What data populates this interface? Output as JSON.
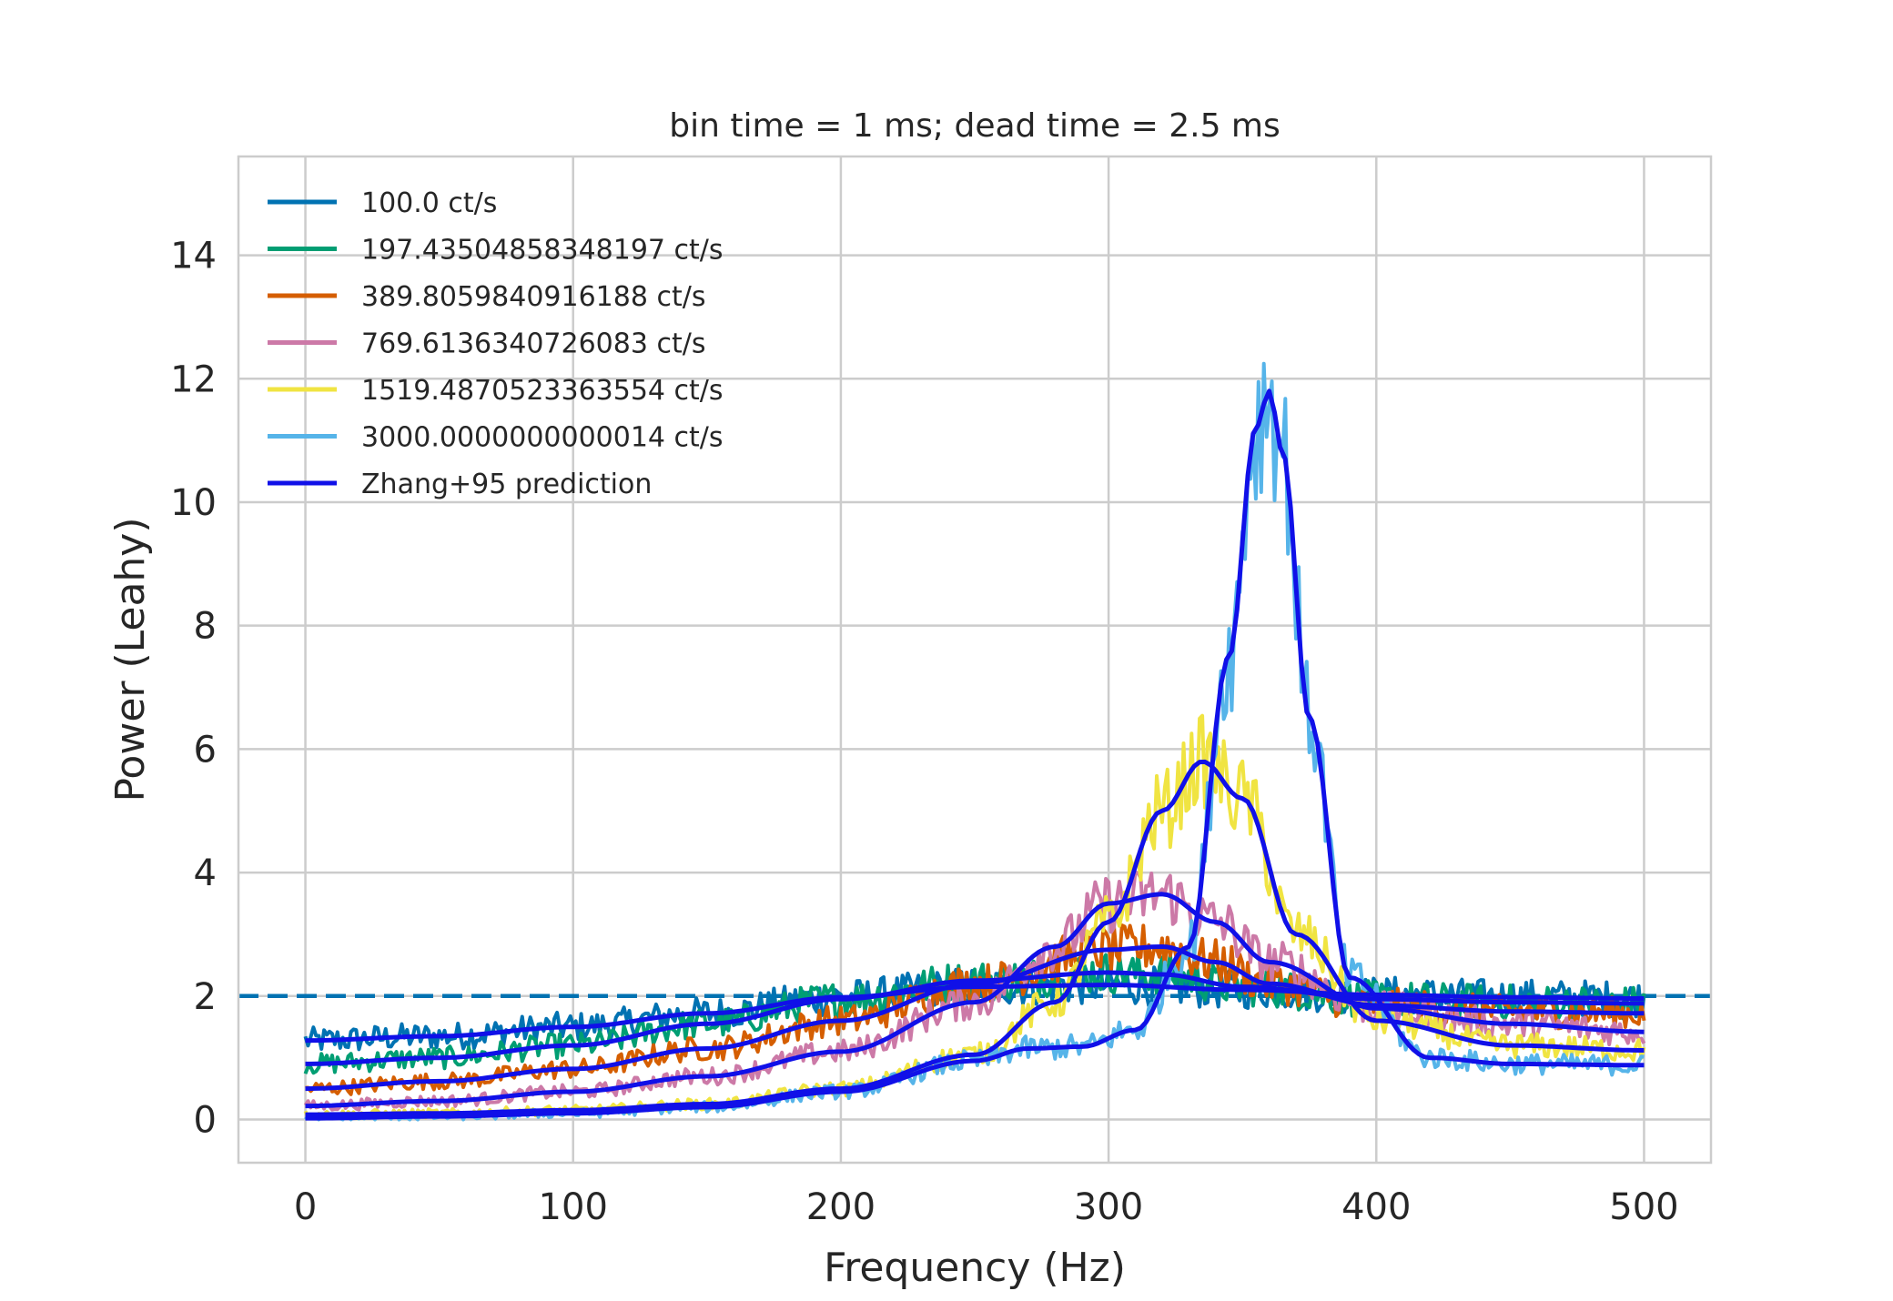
{
  "chart_data": {
    "type": "line",
    "title": "bin time = 1 ms; dead time = 2.5 ms",
    "xlabel": "Frequency (Hz)",
    "ylabel": "Power (Leahy)",
    "xlim": [
      -25,
      525
    ],
    "ylim": [
      -0.7,
      15.6
    ],
    "xticks": [
      0,
      100,
      200,
      300,
      400,
      500
    ],
    "yticks": [
      0,
      2,
      4,
      6,
      8,
      10,
      12,
      14
    ],
    "xtick_labels": [
      "0",
      "100",
      "200",
      "300",
      "400",
      "500"
    ],
    "ytick_labels": [
      "0",
      "2",
      "4",
      "6",
      "8",
      "10",
      "12",
      "14"
    ],
    "grid": true,
    "legend_position": "top-left",
    "reference_line": {
      "y": 2,
      "style": "dashed",
      "color": "#0072b2"
    },
    "series": [
      {
        "name": "100.0 ct/s",
        "color": "#0072b2",
        "x": [
          0,
          50,
          100,
          150,
          200,
          250,
          300,
          350,
          400,
          450,
          500
        ],
        "y": [
          1.28,
          1.35,
          1.5,
          1.72,
          1.98,
          2.15,
          2.18,
          2.1,
          2.02,
          1.98,
          1.96
        ]
      },
      {
        "name": "197.43504858348197 ct/s",
        "color": "#009e73",
        "x": [
          0,
          50,
          100,
          150,
          200,
          250,
          300,
          320,
          350,
          400,
          450,
          500
        ],
        "y": [
          0.9,
          1.0,
          1.2,
          1.55,
          1.95,
          2.25,
          2.38,
          2.35,
          2.15,
          1.95,
          1.9,
          1.88
        ]
      },
      {
        "name": "389.8059840916188 ct/s",
        "color": "#d55e00",
        "x": [
          0,
          50,
          100,
          150,
          200,
          250,
          300,
          320,
          340,
          360,
          400,
          450,
          500
        ],
        "y": [
          0.5,
          0.62,
          0.82,
          1.15,
          1.6,
          2.2,
          2.75,
          2.8,
          2.55,
          2.2,
          1.85,
          1.75,
          1.72
        ]
      },
      {
        "name": "769.6136340726083 ct/s",
        "color": "#cc79a7",
        "x": [
          0,
          50,
          100,
          150,
          200,
          250,
          280,
          300,
          320,
          340,
          360,
          400,
          450,
          500
        ],
        "y": [
          0.22,
          0.3,
          0.45,
          0.7,
          1.1,
          1.9,
          2.8,
          3.5,
          3.65,
          3.2,
          2.55,
          1.8,
          1.55,
          1.42
        ]
      },
      {
        "name": "1519.4870523363554 ct/s",
        "color": "#f0e442",
        "x": [
          0,
          50,
          100,
          150,
          200,
          250,
          280,
          300,
          320,
          335,
          350,
          370,
          400,
          450,
          500
        ],
        "y": [
          0.08,
          0.1,
          0.15,
          0.25,
          0.5,
          1.05,
          1.9,
          3.2,
          5.0,
          5.8,
          5.2,
          3.0,
          1.6,
          1.2,
          1.12
        ]
      },
      {
        "name": "3000.0000000000014 ct/s",
        "color": "#56b4e9",
        "x": [
          0,
          50,
          100,
          150,
          200,
          250,
          270,
          290,
          310,
          330,
          345,
          355,
          360,
          365,
          375,
          390,
          420,
          450,
          500
        ],
        "y": [
          0.02,
          0.05,
          0.1,
          0.2,
          0.45,
          0.95,
          1.15,
          1.18,
          1.45,
          2.8,
          7.5,
          11.2,
          11.8,
          10.8,
          6.5,
          2.3,
          1.0,
          0.9,
          0.88
        ]
      },
      {
        "name": "Zhang+95 prediction",
        "color": "#1010e8"
      }
    ]
  }
}
